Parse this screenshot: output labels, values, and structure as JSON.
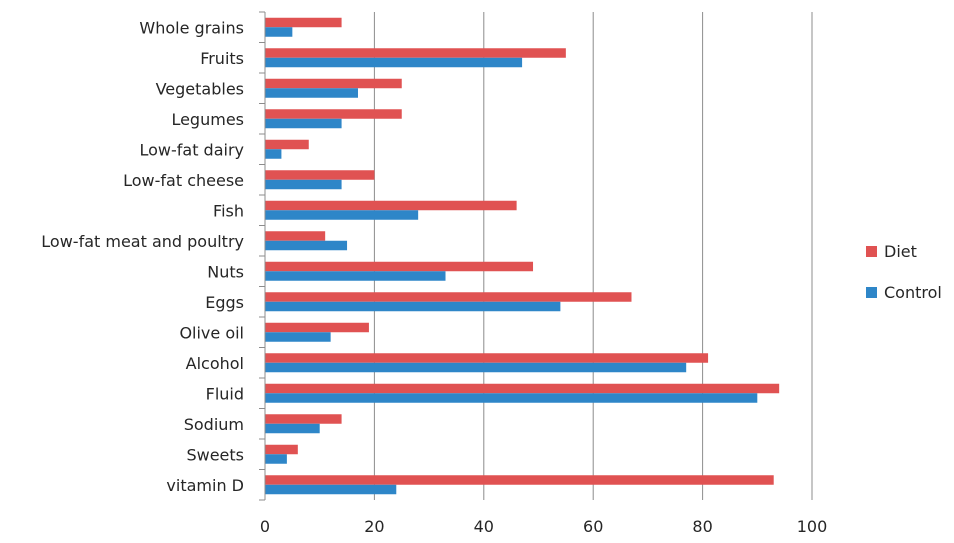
{
  "chart_data": {
    "type": "bar",
    "orientation": "horizontal",
    "categories": [
      "Whole grains",
      "Fruits",
      "Vegetables",
      "Legumes",
      "Low-fat dairy",
      "Low-fat cheese",
      "Fish",
      "Low-fat meat and poultry",
      "Nuts",
      "Eggs",
      "Olive oil",
      "Alcohol",
      "Fluid",
      "Sodium",
      "Sweets",
      "vitamin D"
    ],
    "series": [
      {
        "name": "Diet",
        "color": "#E05252",
        "values": [
          14,
          55,
          25,
          25,
          8,
          20,
          46,
          11,
          49,
          67,
          19,
          81,
          94,
          14,
          6,
          93
        ]
      },
      {
        "name": "Control",
        "color": "#2E86C8",
        "values": [
          5,
          47,
          17,
          14,
          3,
          14,
          28,
          15,
          33,
          54,
          12,
          77,
          90,
          10,
          4,
          24
        ]
      }
    ],
    "xlim": [
      0,
      100
    ],
    "xticks": [
      0,
      20,
      40,
      60,
      80,
      100
    ],
    "grid": true,
    "legend": "right",
    "title": "",
    "xlabel": "",
    "ylabel": ""
  }
}
